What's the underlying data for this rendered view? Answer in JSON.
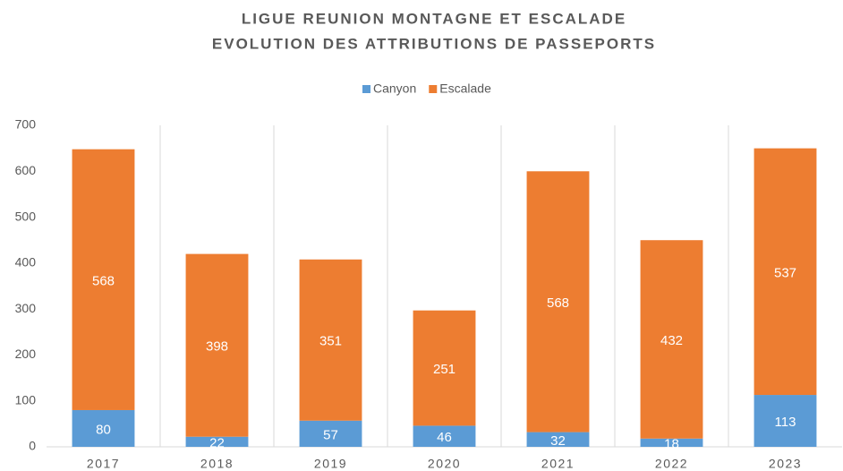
{
  "chart_data": {
    "type": "bar",
    "stacked": true,
    "title": "LIGUE REUNION MONTAGNE ET ESCALADE",
    "subtitle": "EVOLUTION DES ATTRIBUTIONS DE PASSEPORTS",
    "categories": [
      "2017",
      "2018",
      "2019",
      "2020",
      "2021",
      "2022",
      "2023"
    ],
    "series": [
      {
        "name": "Canyon",
        "color": "#5b9bd5",
        "values": [
          80,
          22,
          57,
          46,
          32,
          18,
          113
        ]
      },
      {
        "name": "Escalade",
        "color": "#ed7d31",
        "values": [
          568,
          398,
          351,
          251,
          568,
          432,
          537
        ]
      }
    ],
    "ylim": [
      0,
      700
    ],
    "yticks": [
      0,
      100,
      200,
      300,
      400,
      500,
      600,
      700
    ],
    "legend": "top"
  }
}
